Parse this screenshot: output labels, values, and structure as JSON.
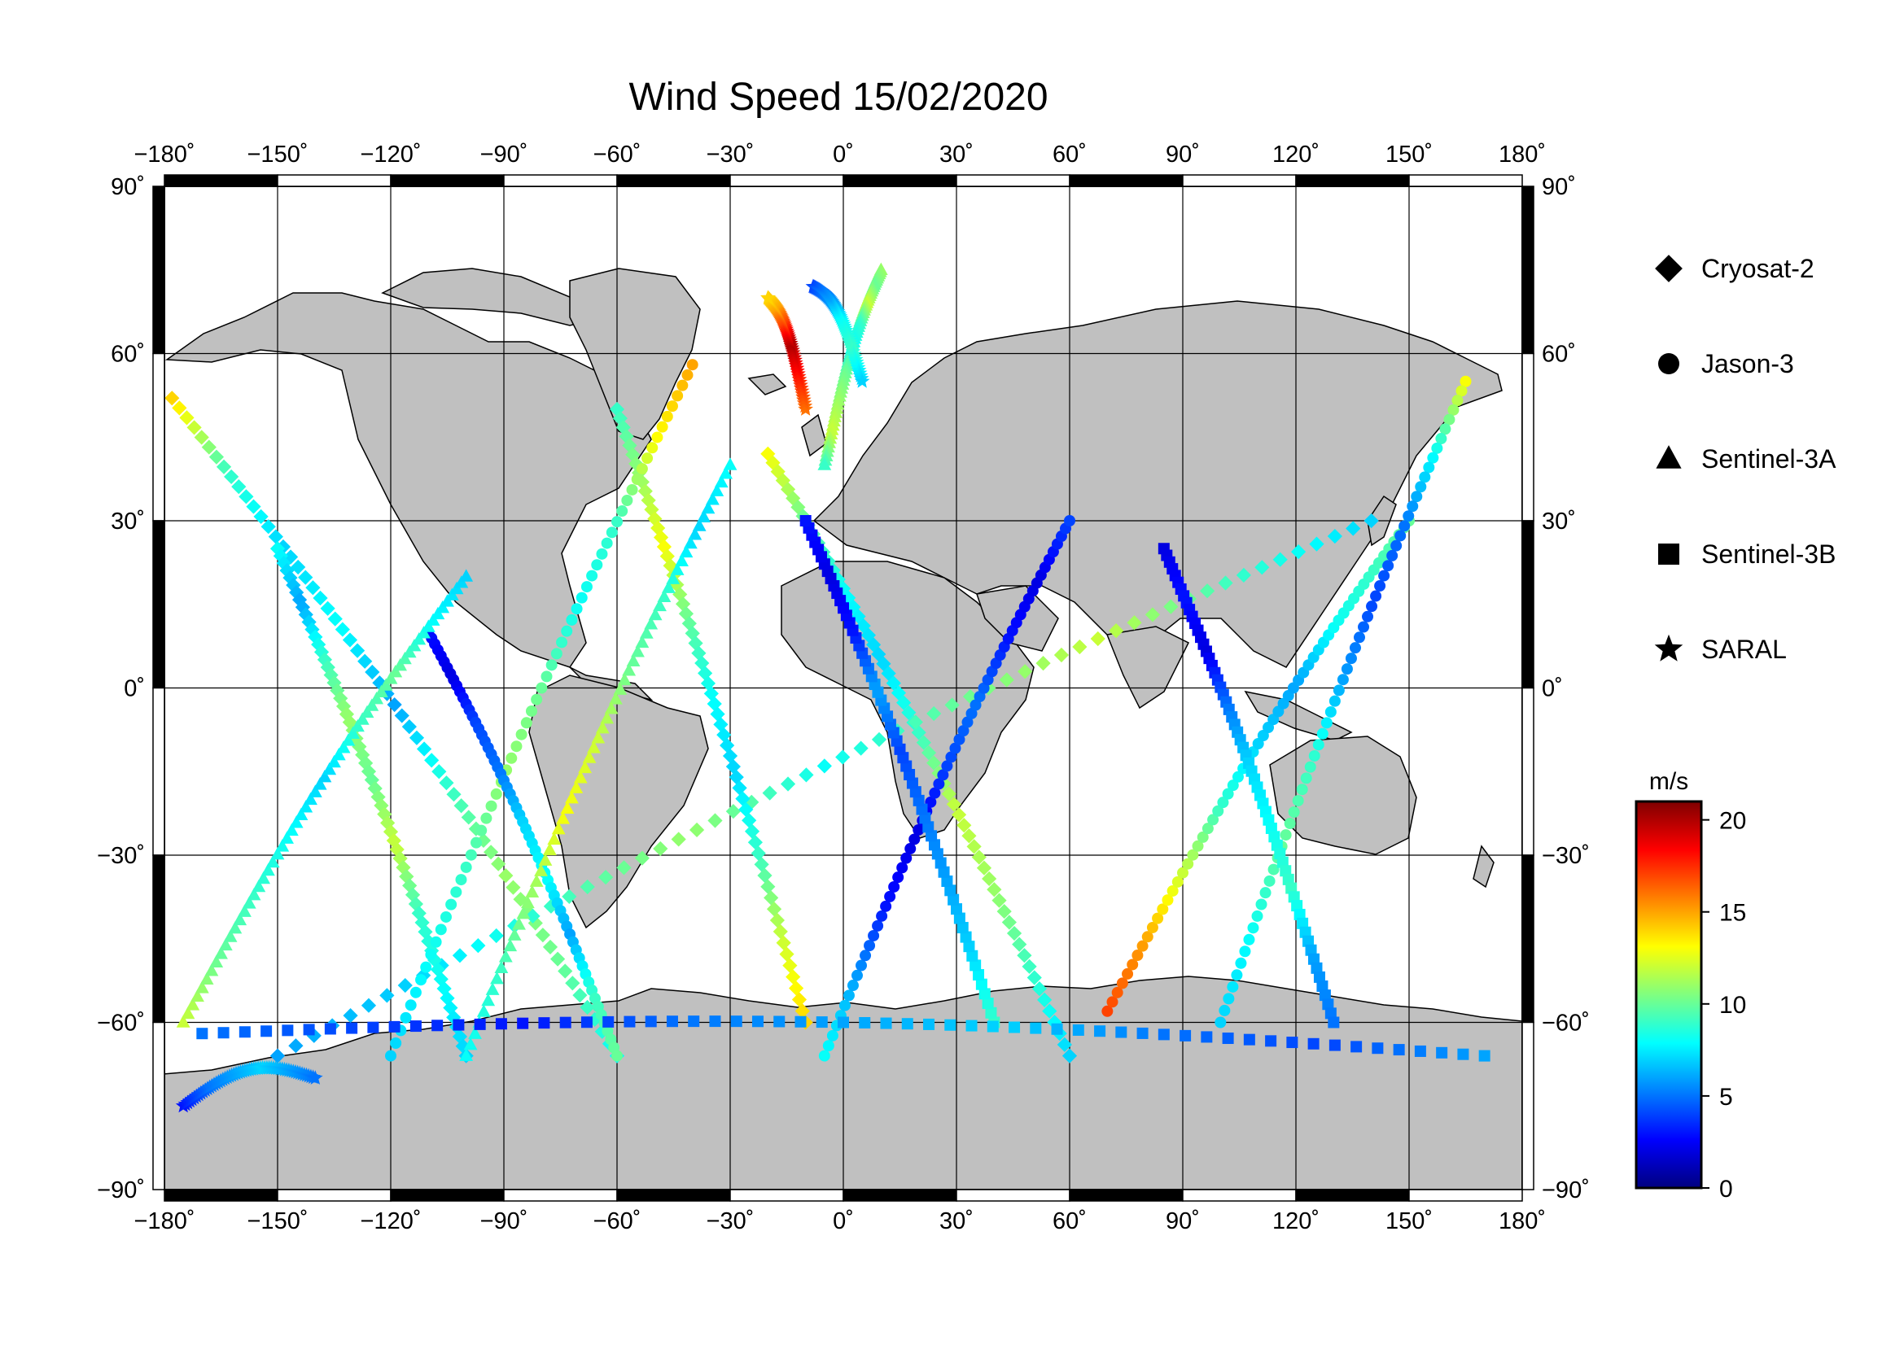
{
  "title": "Wind Speed 15/02/2020",
  "map": {
    "projection": "equirectangular",
    "lon_range": [
      -180,
      180
    ],
    "lat_range": [
      -90,
      90
    ],
    "lon_ticks": [
      "−180˚",
      "−150˚",
      "−120˚",
      "−90˚",
      "−60˚",
      "−30˚",
      "0˚",
      "30˚",
      "60˚",
      "90˚",
      "120˚",
      "150˚",
      "180˚"
    ],
    "lat_ticks": [
      "90˚",
      "60˚",
      "30˚",
      "0˚",
      "−30˚",
      "−60˚",
      "−90˚"
    ],
    "land_color": "#c0c0c0",
    "ocean_color": "#ffffff",
    "grid": true
  },
  "legend": {
    "items": [
      {
        "label": "Cryosat-2",
        "symbol": "diamond-icon"
      },
      {
        "label": "Jason-3",
        "symbol": "circle-icon"
      },
      {
        "label": "Sentinel-3A",
        "symbol": "triangle-icon"
      },
      {
        "label": "Sentinel-3B",
        "symbol": "square-icon"
      },
      {
        "label": "SARAL",
        "symbol": "star-icon"
      }
    ]
  },
  "colorbar": {
    "unit": "m/s",
    "range": [
      0,
      21
    ],
    "ticks": [
      "20",
      "15",
      "10",
      "5",
      "0"
    ],
    "colormap": "jet"
  },
  "chart_data": {
    "type": "scatter",
    "title": "Wind Speed 15/02/2020",
    "xlabel": "",
    "ylabel": "",
    "xlim": [
      -180,
      180
    ],
    "ylim": [
      -90,
      90
    ],
    "value_unit": "m/s",
    "series": [
      {
        "name": "Cryosat-2",
        "marker": "diamond",
        "tracks": [
          {
            "start": [
              -178,
              52
            ],
            "end": [
              -60,
              -66
            ],
            "speeds": [
              14,
              9,
              7,
              8,
              6,
              9,
              11,
              10,
              8
            ]
          },
          {
            "start": [
              -20,
              42
            ],
            "end": [
              60,
              -66
            ],
            "speeds": [
              13,
              10,
              8,
              7,
              9,
              12,
              11,
              9,
              7
            ]
          },
          {
            "start": [
              140,
              30
            ],
            "end": [
              -150,
              -66
            ],
            "speeds": [
              7,
              9,
              12,
              10,
              8,
              11,
              9,
              7,
              6
            ]
          },
          {
            "start": [
              -150,
              25
            ],
            "end": [
              -100,
              -66
            ],
            "speeds": [
              8,
              6,
              9,
              11,
              10,
              12,
              9,
              8,
              7
            ]
          },
          {
            "start": [
              -60,
              50
            ],
            "end": [
              -10,
              -60
            ],
            "speeds": [
              9,
              11,
              13,
              10,
              8,
              7,
              9,
              12,
              14
            ]
          }
        ]
      },
      {
        "name": "Jason-3",
        "marker": "circle",
        "tracks": [
          {
            "start": [
              -40,
              58
            ],
            "end": [
              -120,
              -66
            ],
            "speeds": [
              15,
              13,
              9,
              8,
              10,
              11,
              9,
              8,
              7
            ]
          },
          {
            "start": [
              70,
              -58
            ],
            "end": [
              150,
              30
            ],
            "speeds": [
              17,
              15,
              12,
              9,
              7,
              6,
              8,
              9,
              10
            ]
          },
          {
            "start": [
              165,
              55
            ],
            "end": [
              100,
              -60
            ],
            "speeds": [
              13,
              8,
              5,
              4,
              6,
              9,
              10,
              8,
              7
            ]
          },
          {
            "start": [
              -110,
              10
            ],
            "end": [
              -60,
              -66
            ],
            "speeds": [
              3,
              2,
              4,
              5,
              7,
              8,
              6,
              9,
              10
            ]
          },
          {
            "start": [
              -5,
              -66
            ],
            "end": [
              60,
              30
            ],
            "speeds": [
              8,
              6,
              3,
              2,
              4,
              5,
              3,
              2,
              4
            ]
          }
        ]
      },
      {
        "name": "Sentinel-3A",
        "marker": "triangle",
        "tracks": [
          {
            "start": [
              -175,
              -60
            ],
            "end": [
              -100,
              20
            ],
            "speeds": [
              12,
              10,
              9,
              8,
              7,
              9,
              10,
              8,
              7
            ]
          },
          {
            "start": [
              -30,
              40
            ],
            "end": [
              -100,
              -66
            ],
            "speeds": [
              8,
              7,
              9,
              10,
              12,
              13,
              11,
              9,
              8
            ]
          },
          {
            "start": [
              10,
              75
            ],
            "end": [
              -5,
              40
            ],
            "speeds": [
              11,
              10,
              12,
              9,
              8,
              10,
              11,
              12,
              9
            ]
          }
        ]
      },
      {
        "name": "Sentinel-3B",
        "marker": "square",
        "tracks": [
          {
            "start": [
              85,
              25
            ],
            "end": [
              130,
              -60
            ],
            "speeds": [
              2,
              3,
              2,
              5,
              7,
              8,
              9,
              6,
              5
            ]
          },
          {
            "start": [
              40,
              -60
            ],
            "end": [
              -10,
              30
            ],
            "speeds": [
              9,
              7,
              6,
              5,
              4,
              6,
              3,
              2,
              3
            ]
          },
          {
            "start": [
              -170,
              -62
            ],
            "end": [
              170,
              -66
            ],
            "speeds": [
              5,
              4,
              3,
              5,
              6,
              7,
              5,
              4,
              6
            ]
          }
        ]
      },
      {
        "name": "SARAL",
        "marker": "star",
        "tracks": [
          {
            "start": [
              -10,
              50
            ],
            "end": [
              -20,
              70
            ],
            "speeds": [
              16,
              18,
              20,
              17,
              15,
              14
            ]
          },
          {
            "start": [
              -175,
              -75
            ],
            "end": [
              -140,
              -70
            ],
            "speeds": [
              3,
              5,
              6,
              7,
              6,
              5
            ]
          },
          {
            "start": [
              -8,
              72
            ],
            "end": [
              5,
              55
            ],
            "speeds": [
              4,
              5,
              6,
              8,
              9,
              7
            ]
          }
        ]
      }
    ]
  }
}
